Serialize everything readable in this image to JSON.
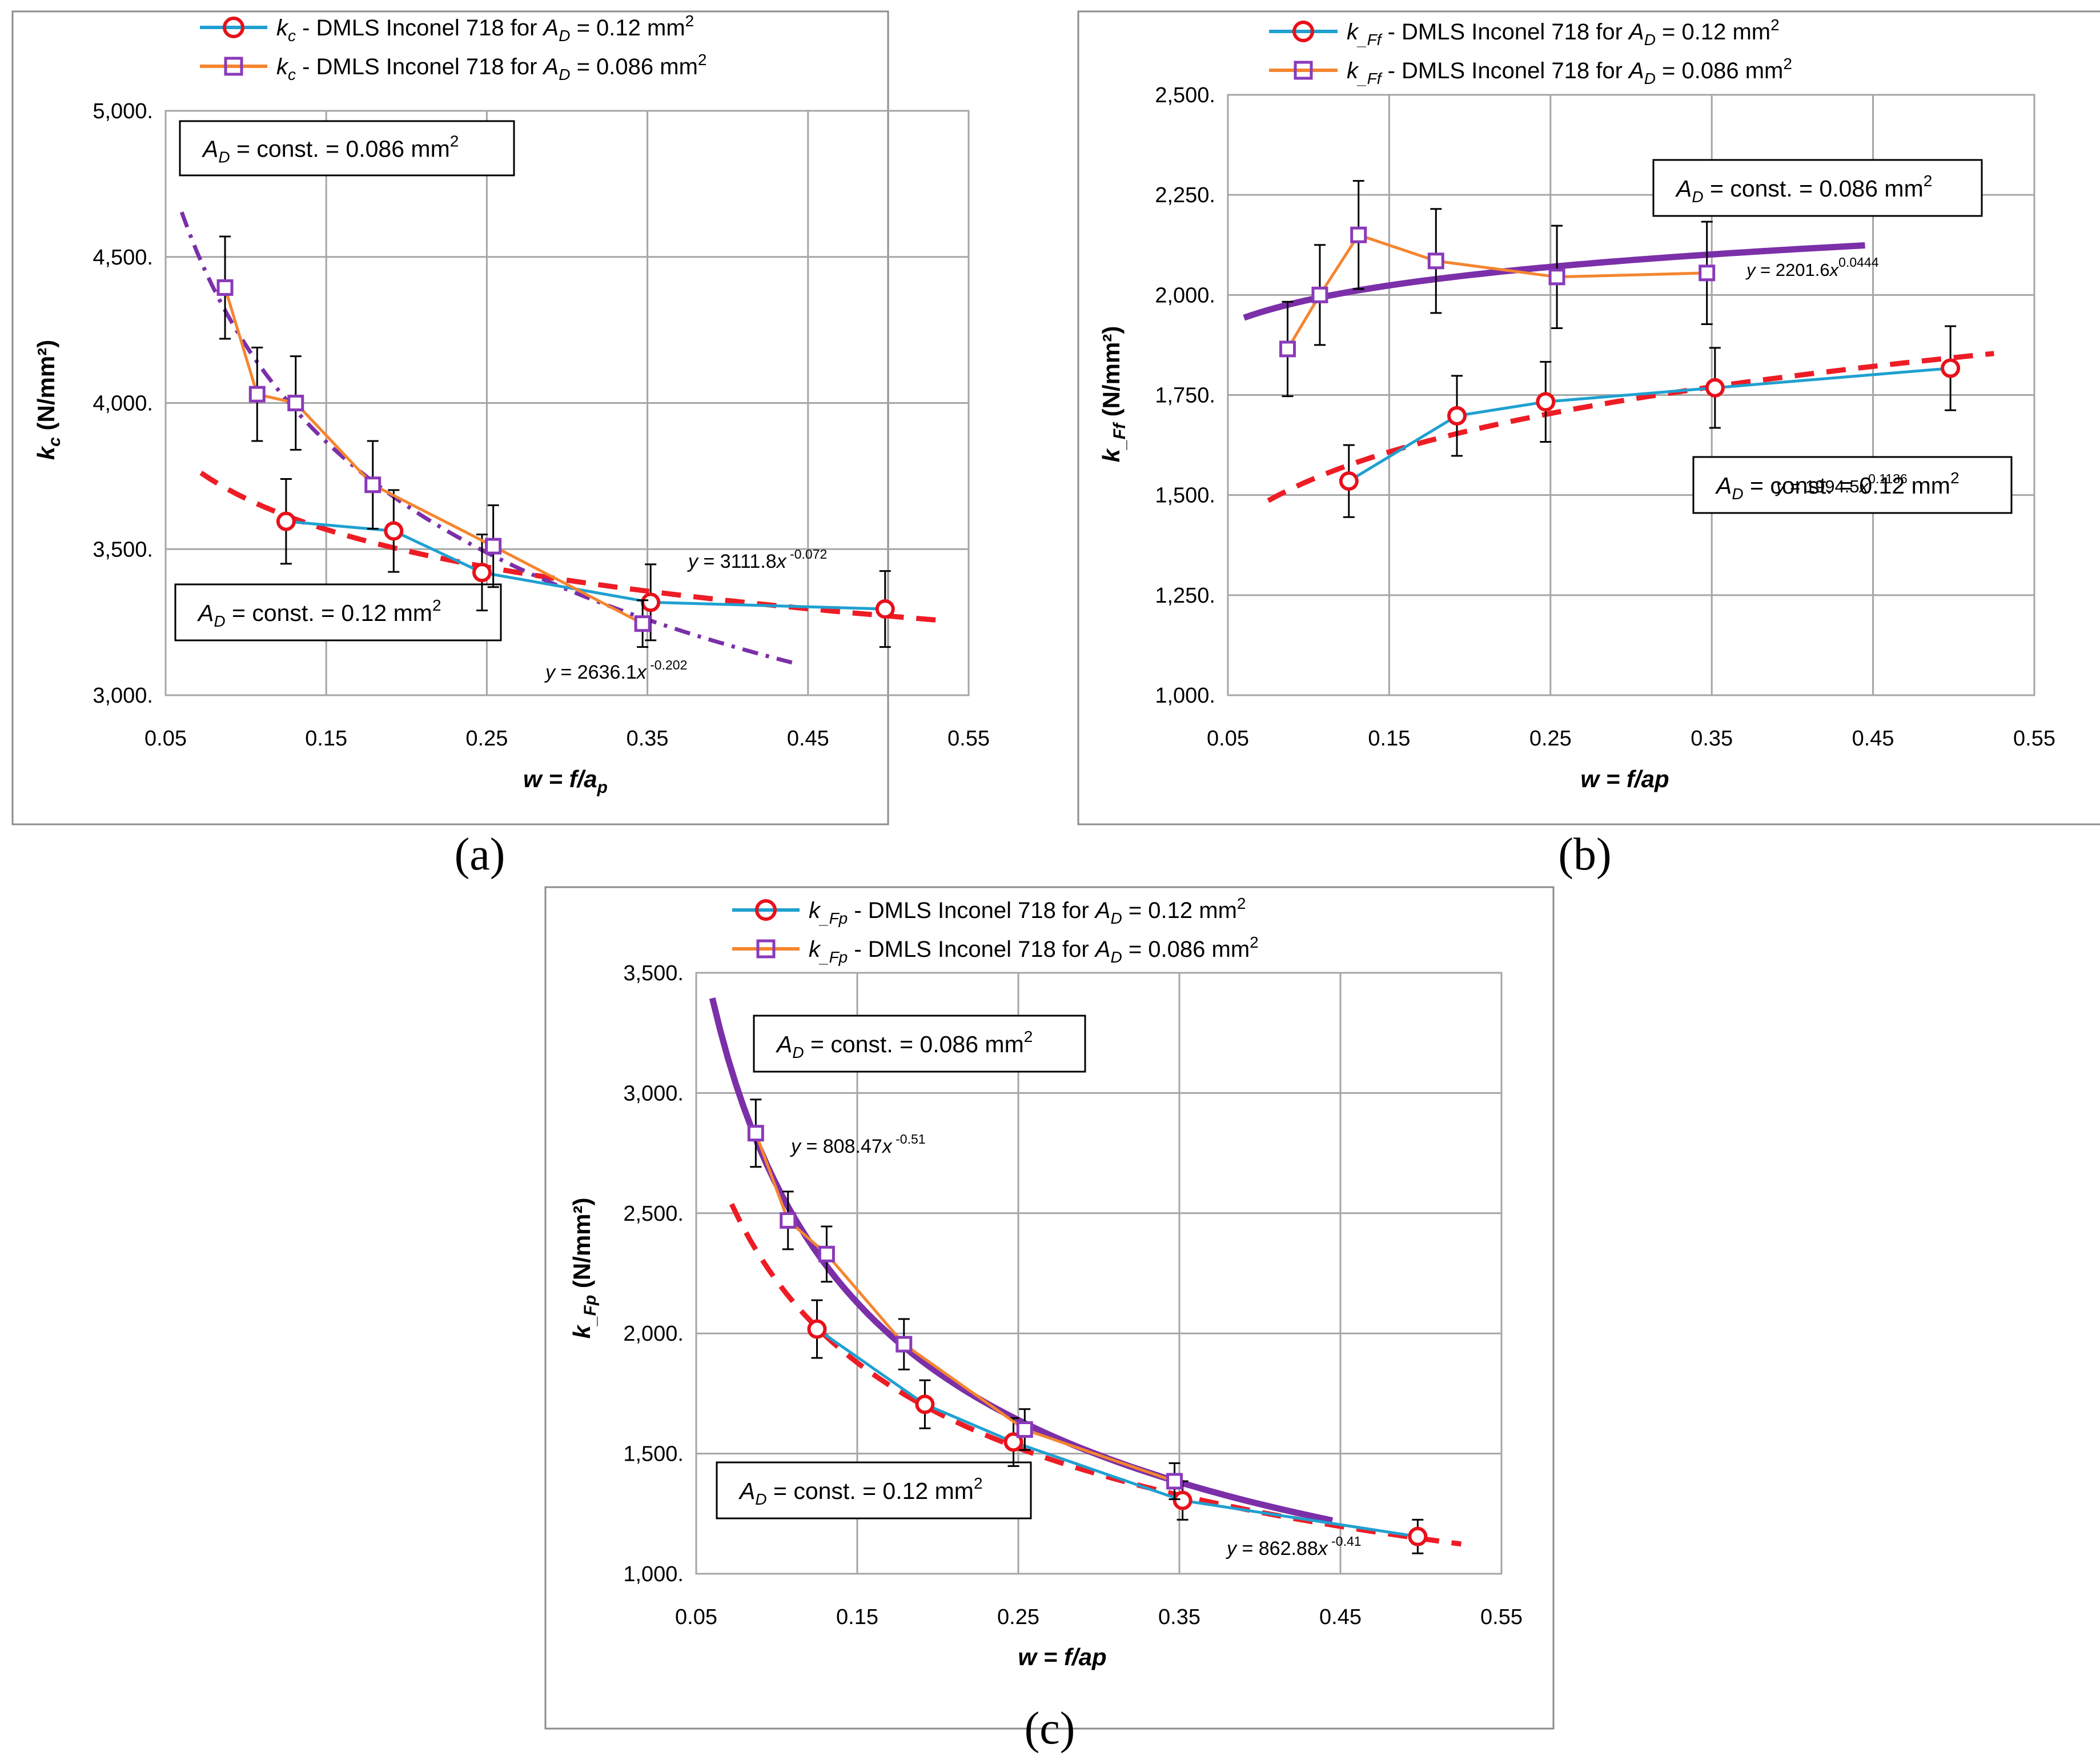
{
  "colors": {
    "series1_line": "#1fa0d0",
    "series1_marker": "#e8101a",
    "series2_line": "#f5852f",
    "series2_marker": "#8a3ab9",
    "fit1": "#ee1c25",
    "fit2": "#7b2fa8",
    "grid": "#a6a6a6"
  },
  "chart_data": [
    {
      "id": "a",
      "type": "line",
      "caption": "(a)",
      "xlabel": "w = f/a",
      "xlabel_sub": "p",
      "ylabel": "k",
      "ylabel_sub": "c",
      "ylabel_unit": "(N/mm²)",
      "xlim": [
        0.05,
        0.55
      ],
      "ylim": [
        3000,
        5000
      ],
      "xticks": [
        0.05,
        0.15,
        0.25,
        0.35,
        0.45,
        0.55
      ],
      "xtick_labels": [
        "0.05",
        "0.15",
        "0.25",
        "0.35",
        "0.45",
        "0.55"
      ],
      "yticks": [
        3000,
        3500,
        4000,
        4500,
        5000
      ],
      "ytick_labels": [
        "3,000.",
        "3,500.",
        "4,000.",
        "4,500.",
        "5,000."
      ],
      "legend": [
        {
          "sym": "k",
          "sub": "c",
          "text": " - DMLS Inconel 718 for ",
          "ad": "A",
          "adsub": "D",
          "val": " = 0.12 mm",
          "sup": "2"
        },
        {
          "sym": "k",
          "sub": "c",
          "text": " - DMLS Inconel 718 for ",
          "ad": "A",
          "adsub": "D",
          "val": " = 0.086 mm",
          "sup": "2"
        }
      ],
      "series": [
        {
          "name": "kc - DMLS Inconel 718 for AD = 0.12 mm2",
          "x": [
            0.125,
            0.192,
            0.247,
            0.352,
            0.498
          ],
          "y": [
            3595,
            3562,
            3420,
            3318,
            3295
          ],
          "err": [
            145,
            140,
            130,
            130,
            130
          ]
        },
        {
          "name": "kc - DMLS Inconel 718 for AD = 0.086 mm2",
          "x": [
            0.087,
            0.107,
            0.131,
            0.179,
            0.254,
            0.347
          ],
          "y": [
            4395,
            4030,
            4000,
            3720,
            3510,
            3245
          ],
          "err": [
            175,
            160,
            160,
            150,
            140,
            80
          ]
        }
      ],
      "fits": [
        {
          "a": 3111.8,
          "b": -0.072,
          "x0": 0.072,
          "x1": 0.53,
          "style": "dash",
          "label_pre": "y = 3111.8",
          "label_var": "x",
          "label_exp": " -0.072"
        },
        {
          "a": 2636.1,
          "b": -0.202,
          "x0": 0.06,
          "x1": 0.44,
          "style": "dashdot",
          "label_pre": "y = 2636.1",
          "label_var": "x",
          "label_exp": " -0.202"
        }
      ],
      "boxes": [
        {
          "pre": "A",
          "sub": "D",
          "text": " = const. = 0.086 mm",
          "sup": "2"
        },
        {
          "pre": "A",
          "sub": "D",
          "text": " = const. = 0.12 mm",
          "sup": "2"
        }
      ]
    },
    {
      "id": "b",
      "type": "line",
      "caption": "(b)",
      "xlabel": "w = f/ap",
      "xlabel_sub": "",
      "ylabel": "k",
      "ylabel_sub": "_Ff",
      "ylabel_unit": "(N/mm²)",
      "xlim": [
        0.05,
        0.55
      ],
      "ylim": [
        1000,
        2500
      ],
      "xticks": [
        0.05,
        0.15,
        0.25,
        0.35,
        0.45,
        0.55
      ],
      "xtick_labels": [
        "0.05",
        "0.15",
        "0.25",
        "0.35",
        "0.45",
        "0.55"
      ],
      "yticks": [
        1000,
        1250,
        1500,
        1750,
        2000,
        2250,
        2500
      ],
      "ytick_labels": [
        "1,000.",
        "1,250.",
        "1,500.",
        "1,750.",
        "2,000.",
        "2,250.",
        "2,500."
      ],
      "legend": [
        {
          "sym": "k",
          "sub": "_Ff",
          "text": " - DMLS Inconel 718 for ",
          "ad": "A",
          "adsub": "D",
          "val": " = 0.12 mm",
          "sup": "2"
        },
        {
          "sym": "k",
          "sub": "_Ff",
          "text": " - DMLS Inconel 718 for ",
          "ad": "A",
          "adsub": "D",
          "val": " = 0.086 mm",
          "sup": "2"
        }
      ],
      "series": [
        {
          "name": "k_Ff - DMLS Inconel 718 for AD = 0.12 mm2",
          "x": [
            0.125,
            0.192,
            0.247,
            0.352,
            0.498
          ],
          "y": [
            1535,
            1698,
            1733,
            1768,
            1817
          ],
          "err": [
            90,
            100,
            100,
            100,
            105
          ]
        },
        {
          "name": "k_Ff - DMLS Inconel 718 for AD = 0.086 mm2",
          "x": [
            0.087,
            0.107,
            0.131,
            0.179,
            0.254,
            0.347
          ],
          "y": [
            1865,
            2000,
            2150,
            2085,
            2045,
            2055
          ],
          "err": [
            118,
            125,
            135,
            130,
            128,
            128
          ]
        }
      ],
      "fits": [
        {
          "a": 1994.5,
          "b": 0.1136,
          "x0": 0.075,
          "x1": 0.525,
          "style": "dash",
          "label_pre": "y = 1994.5",
          "label_var": "x",
          "label_exp": "0.1136"
        },
        {
          "a": 2201.6,
          "b": 0.0444,
          "x0": 0.06,
          "x1": 0.445,
          "style": "solid",
          "label_pre": "y = 2201.6",
          "label_var": "x",
          "label_exp": "0.0444"
        }
      ],
      "boxes": [
        {
          "pre": "A",
          "sub": "D",
          "text": " = const. = 0.086 mm",
          "sup": "2"
        },
        {
          "pre": "A",
          "sub": "D",
          "text": " = const. = 0.12 mm",
          "sup": "2"
        }
      ]
    },
    {
      "id": "c",
      "type": "line",
      "caption": "(c)",
      "xlabel": "w = f/ap",
      "xlabel_sub": "",
      "ylabel": "k",
      "ylabel_sub": "_Fp",
      "ylabel_unit": "(N/mm²)",
      "xlim": [
        0.05,
        0.55
      ],
      "ylim": [
        1000,
        3500
      ],
      "xticks": [
        0.05,
        0.15,
        0.25,
        0.35,
        0.45,
        0.55
      ],
      "xtick_labels": [
        "0.05",
        "0.15",
        "0.25",
        "0.35",
        "0.45",
        "0.55"
      ],
      "yticks": [
        1000,
        1500,
        2000,
        2500,
        3000,
        3500
      ],
      "ytick_labels": [
        "1,000.",
        "1,500.",
        "2,000.",
        "2,500.",
        "3,000.",
        "3,500."
      ],
      "legend": [
        {
          "sym": "k",
          "sub": "_Fp",
          "text": " - DMLS Inconel 718 for ",
          "ad": "A",
          "adsub": "D",
          "val": " = 0.12 mm",
          "sup": "2"
        },
        {
          "sym": "k",
          "sub": "_Fp",
          "text": " - DMLS Inconel 718 for ",
          "ad": "A",
          "adsub": "D",
          "val": " = 0.086 mm",
          "sup": "2"
        }
      ],
      "series": [
        {
          "name": "k_Fp - DMLS Inconel 718 for AD = 0.12 mm2",
          "x": [
            0.125,
            0.192,
            0.247,
            0.352,
            0.498
          ],
          "y": [
            2018,
            1705,
            1548,
            1305,
            1155
          ],
          "err": [
            120,
            100,
            100,
            80,
            70
          ]
        },
        {
          "name": "k_Fp - DMLS Inconel 718 for AD = 0.086 mm2",
          "x": [
            0.087,
            0.107,
            0.131,
            0.179,
            0.254,
            0.347
          ],
          "y": [
            2833,
            2470,
            2330,
            1955,
            1600,
            1385
          ],
          "err": [
            140,
            120,
            115,
            105,
            85,
            75
          ]
        }
      ],
      "fits": [
        {
          "a": 862.88,
          "b": -0.41,
          "x0": 0.072,
          "x1": 0.525,
          "style": "dash",
          "label_pre": "y = 862.88",
          "label_var": "x",
          "label_exp": " -0.41"
        },
        {
          "a": 808.47,
          "b": -0.51,
          "x0": 0.06,
          "x1": 0.445,
          "style": "solid",
          "label_pre": "y = 808.47",
          "label_var": "x",
          "label_exp": " -0.51"
        }
      ],
      "boxes": [
        {
          "pre": "A",
          "sub": "D",
          "text": " = const. = 0.086 mm",
          "sup": "2"
        },
        {
          "pre": "A",
          "sub": "D",
          "text": " = const. = 0.12 mm",
          "sup": "2"
        }
      ]
    }
  ]
}
